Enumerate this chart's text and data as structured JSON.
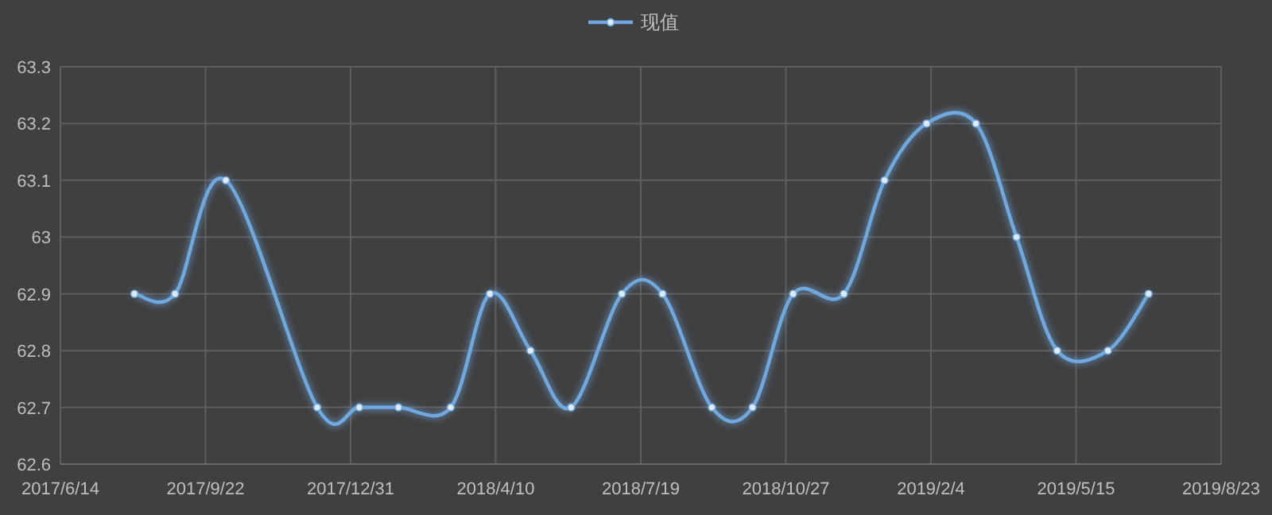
{
  "chart_data": {
    "type": "line",
    "legend": "top",
    "grid": true,
    "marker": "circle",
    "line_style": "solid",
    "x": [
      "2017-08-04",
      "2017-09-01",
      "2017-10-06",
      "2017-12-08",
      "2018-01-06",
      "2018-02-02",
      "2018-03-10",
      "2018-04-06",
      "2018-05-04",
      "2018-06-01",
      "2018-07-06",
      "2018-08-03",
      "2018-09-06",
      "2018-10-04",
      "2018-11-01",
      "2018-12-06",
      "2019-01-03",
      "2019-02-01",
      "2019-03-07",
      "2019-04-04",
      "2019-05-02",
      "2019-06-06",
      "2019-07-04"
    ],
    "series": [
      {
        "name": "现值",
        "color": "#6fa8e0",
        "values": [
          62.9,
          62.9,
          63.1,
          62.7,
          62.7,
          62.7,
          62.7,
          62.9,
          62.8,
          62.7,
          62.9,
          62.9,
          62.7,
          62.7,
          62.9,
          62.9,
          63.1,
          63.2,
          63.2,
          63.0,
          62.8,
          62.8,
          62.9
        ]
      }
    ],
    "xlim": [
      "2017-06-14",
      "2019-08-23"
    ],
    "xticks": [
      {
        "value": "2017-06-14",
        "label": "2017/6/14"
      },
      {
        "value": "2017-09-22",
        "label": "2017/9/22"
      },
      {
        "value": "2017-12-31",
        "label": "2017/12/31"
      },
      {
        "value": "2018-04-10",
        "label": "2018/4/10"
      },
      {
        "value": "2018-07-19",
        "label": "2018/7/19"
      },
      {
        "value": "2018-10-27",
        "label": "2018/10/27"
      },
      {
        "value": "2019-02-04",
        "label": "2019/2/4"
      },
      {
        "value": "2019-05-15",
        "label": "2019/5/15"
      },
      {
        "value": "2019-08-23",
        "label": "2019/8/23"
      }
    ],
    "ylim": [
      62.6,
      63.3
    ],
    "yticks": [
      62.6,
      62.7,
      62.8,
      62.9,
      63,
      63.1,
      63.2,
      63.3
    ]
  }
}
